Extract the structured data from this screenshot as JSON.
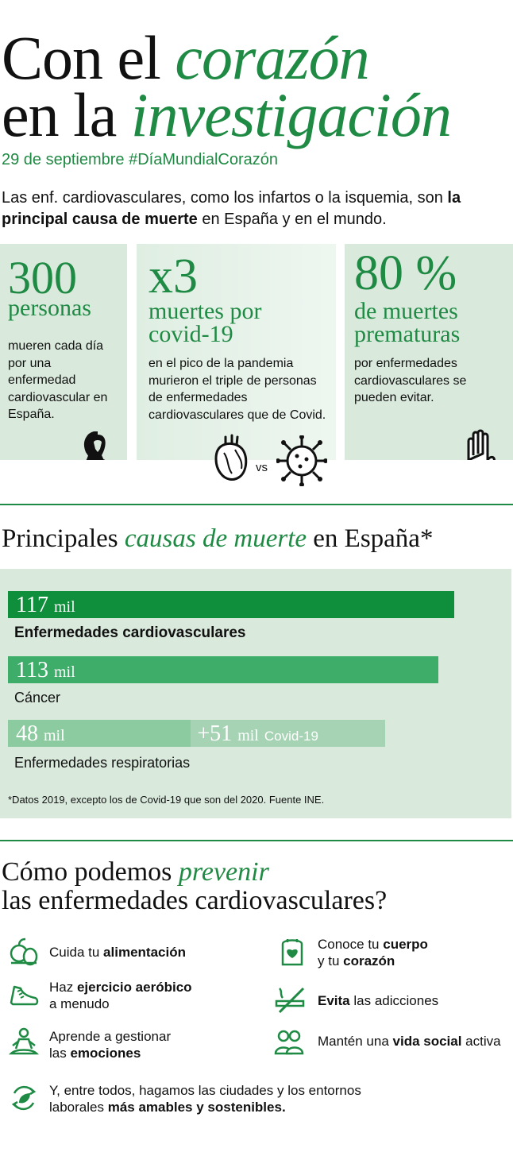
{
  "header": {
    "title_line1_a": "Con el",
    "title_line1_b": "corazón",
    "title_line2_a": "en la",
    "title_line2_b": "investigación",
    "subtitle": "29 de septiembre #DíaMundialCorazón",
    "intro_a": "Las enf. cardiovasculares, como los infartos o la isquemia, son",
    "intro_b": "la principal causa de muerte",
    "intro_c": "en España y en el mundo."
  },
  "cards": [
    {
      "big": "300",
      "sub": "personas",
      "desc": "mueren cada día por una enfermedad cardiovascular en España.",
      "icon": "ribbon-icon"
    },
    {
      "big": "x3",
      "sub": "muertes por covid-19",
      "desc": "en el pico de la pandemia murieron el triple de personas de enfermedades cardiovasculares que de Covid.",
      "vs": "vs",
      "icon": "heart-vs-virus-icon"
    },
    {
      "big": "80 %",
      "sub": "de muertes prematuras",
      "desc": "por enfermedades cardiovasculares se pueden evitar.",
      "icon": "hand-stop-icon"
    }
  ],
  "chart_section": {
    "title_a": "Principales",
    "title_b": "causas de muerte",
    "title_c": "en España*",
    "note": "*Datos 2019, excepto los de Covid-19 que son del 2020. Fuente INE."
  },
  "chart_data": {
    "type": "bar",
    "title": "Principales causas de muerte en España*",
    "unit": "mil",
    "categories": [
      "Enfermedades cardiovasculares",
      "Cáncer",
      "Enfermedades respiratorias"
    ],
    "series": [
      {
        "values": [
          117,
          113,
          48
        ]
      },
      {
        "name": "Covid-19",
        "values": [
          0,
          0,
          51
        ]
      }
    ],
    "value_labels": [
      "117",
      "113",
      "48",
      "+51"
    ],
    "unit_label": "mil",
    "covid_label": "Covid-19",
    "colors": [
      "#0f8f3c",
      "#3fad6a",
      "#8ccb9f",
      "#a5d3b3"
    ]
  },
  "prevention": {
    "title_a": "Cómo podemos",
    "title_b": "prevenir",
    "title_c": "las enfermedades cardiovasculares?",
    "tips": [
      {
        "pre": "Cuida tu ",
        "bold": "alimentación",
        "post": "",
        "icon": "food-icon"
      },
      {
        "pre": "Conoce tu ",
        "bold": "cuerpo",
        "post": "",
        "line2_pre": "y tu ",
        "line2_bold": "corazón",
        "icon": "body-heart-icon"
      },
      {
        "pre": "Haz ",
        "bold": "ejercicio aeróbico",
        "post": "",
        "line2_pre": "a menudo",
        "line2_bold": "",
        "icon": "running-shoe-icon"
      },
      {
        "pre": "",
        "bold": "Evita",
        "post": " las adicciones",
        "icon": "no-smoking-icon"
      },
      {
        "pre": "Aprende a gestionar",
        "bold": "",
        "post": "",
        "line2_pre": "las ",
        "line2_bold": "emociones",
        "icon": "meditation-icon"
      },
      {
        "pre": "Mantén una ",
        "bold": "vida social",
        "post": " activa",
        "icon": "people-icon"
      },
      {
        "pre": "Y, entre todos, hagamos las ciudades y los entornos",
        "bold": "",
        "post": "",
        "line2_pre": "laborales ",
        "line2_bold": "más amables y sostenibles.",
        "icon": "sustainability-leaf-icon"
      }
    ]
  },
  "colors": {
    "accent": "#1e8a43",
    "card_bg": "#d9e9dc",
    "bar_dark": "#0f8f3c",
    "bar_mid": "#3fad6a",
    "bar_light": "#8ccb9f",
    "bar_lighter": "#a5d3b3"
  }
}
